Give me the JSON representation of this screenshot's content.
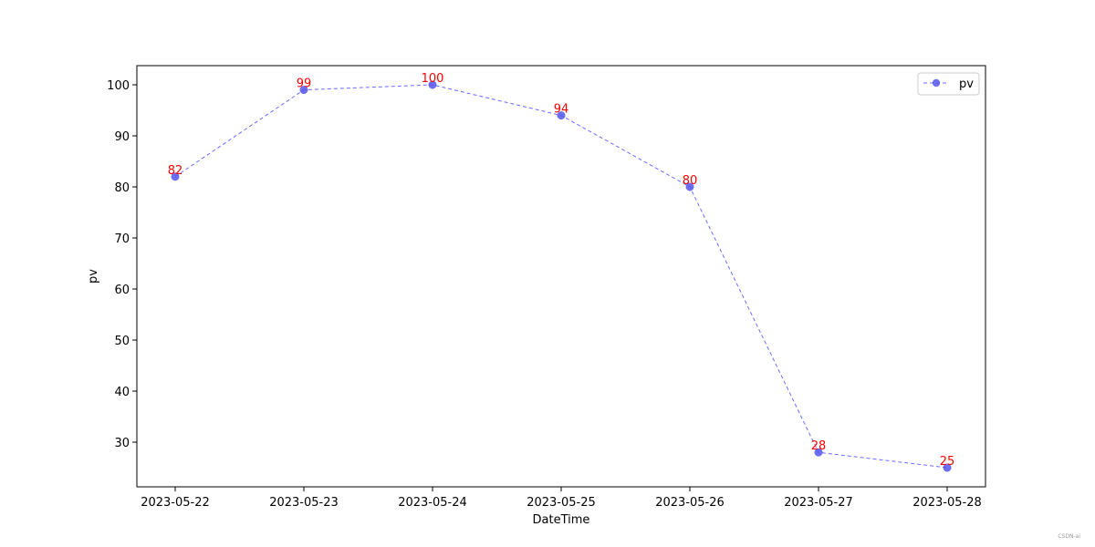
{
  "chart_data": {
    "type": "line",
    "categories": [
      "2023-05-22",
      "2023-05-23",
      "2023-05-24",
      "2023-05-25",
      "2023-05-26",
      "2023-05-27",
      "2023-05-28"
    ],
    "series": [
      {
        "name": "pv",
        "values": [
          82,
          99,
          100,
          94,
          80,
          28,
          25
        ]
      }
    ],
    "xlabel": "DateTime",
    "ylabel": "pv",
    "ylim": [
      21.25,
      103.75
    ],
    "yticks": [
      30,
      40,
      50,
      60,
      70,
      80,
      90,
      100
    ],
    "line_style": "dashed",
    "marker": "circle",
    "line_color": "#6b6bff",
    "marker_color": "#5555ee",
    "data_label_color": "#ff0000",
    "legend_position": "upper right",
    "grid": false
  },
  "watermark": "CSDN-ai"
}
